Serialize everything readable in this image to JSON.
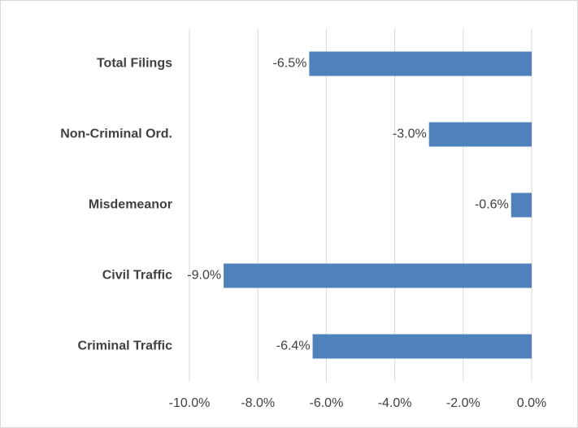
{
  "chart_data": {
    "type": "bar",
    "orientation": "horizontal",
    "categories": [
      "Total Filings",
      "Non-Criminal Ord.",
      "Misdemeanor",
      "Civil Traffic",
      "Criminal Traffic"
    ],
    "values": [
      -6.5,
      -3.0,
      -0.6,
      -9.0,
      -6.4
    ],
    "value_labels": [
      "-6.5%",
      "-3.0%",
      "-0.6%",
      "-9.0%",
      "-6.4%"
    ],
    "color": "#4f81bd",
    "xlim": [
      -10,
      0
    ],
    "xticks": [
      {
        "value": -10,
        "label": "-10.0%"
      },
      {
        "value": -8,
        "label": "-8.0%"
      },
      {
        "value": -6,
        "label": "-6.0%"
      },
      {
        "value": -4,
        "label": "-4.0%"
      },
      {
        "value": -2,
        "label": "-2.0%"
      },
      {
        "value": 0,
        "label": "0.0%"
      }
    ],
    "grid": true
  }
}
